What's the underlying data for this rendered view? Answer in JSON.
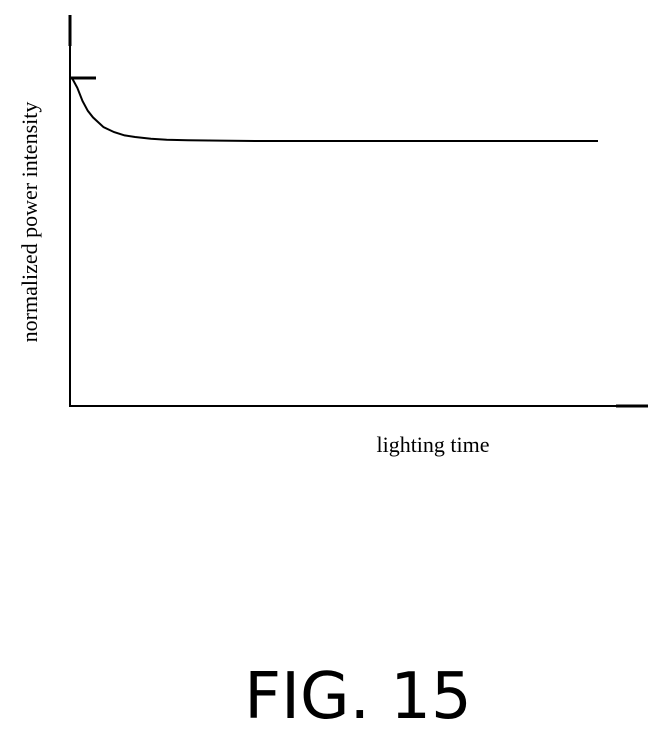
{
  "chart_data": {
    "type": "line",
    "title": "",
    "xlabel": "lighting time",
    "ylabel": "normalized power intensity",
    "xlim": [
      0,
      100
    ],
    "ylim": [
      0,
      1.0
    ],
    "grid": false,
    "legend": "none",
    "series": [
      {
        "x": [
          0,
          1,
          2,
          3,
          4,
          6,
          8,
          10,
          12,
          15,
          18,
          22,
          28,
          35,
          45,
          55,
          65,
          75,
          85,
          95,
          100
        ],
        "values": [
          1.0,
          0.97,
          0.93,
          0.9,
          0.88,
          0.85,
          0.835,
          0.825,
          0.82,
          0.815,
          0.812,
          0.81,
          0.809,
          0.808,
          0.808,
          0.808,
          0.808,
          0.808,
          0.808,
          0.808,
          0.808
        ]
      }
    ]
  },
  "caption": "FIG. 15"
}
